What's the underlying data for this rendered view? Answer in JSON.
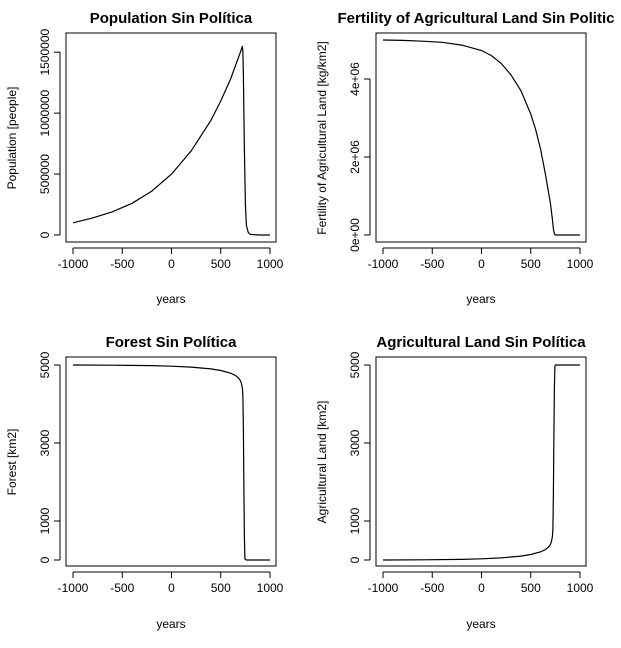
{
  "chart_data": [
    {
      "type": "line",
      "title": "Population Sin Política",
      "xlabel": "years",
      "ylabel": "Population [people]",
      "xlim": [
        -1000,
        1000
      ],
      "ylim": [
        0,
        1600000
      ],
      "x_ticks": [
        -1000,
        -500,
        0,
        500,
        1000
      ],
      "y_ticks": [
        0,
        500000,
        1000000,
        1500000
      ],
      "x_tick_labels": [
        "-1000",
        "-500",
        "0",
        "500",
        "1000"
      ],
      "y_tick_labels": [
        "0",
        "500000",
        "1000000",
        "1500000"
      ],
      "series": [
        {
          "x": [
            -1000,
            -800,
            -600,
            -400,
            -200,
            0,
            200,
            400,
            500,
            600,
            650,
            700,
            720,
            725,
            730,
            740,
            750,
            760,
            780,
            800,
            900,
            1000
          ],
          "y": [
            100000,
            140000,
            190000,
            260000,
            360000,
            500000,
            690000,
            940000,
            1100000,
            1280000,
            1390000,
            1500000,
            1550000,
            1500000,
            1300000,
            700000,
            250000,
            80000,
            20000,
            5000,
            0,
            0
          ]
        }
      ]
    },
    {
      "type": "line",
      "title": "Fertility of Agricultural Land Sin Politic",
      "xlabel": "years",
      "ylabel": "Fertility of Agricultural Land [kg/km2]",
      "xlim": [
        -1000,
        1000
      ],
      "ylim": [
        0,
        5000000
      ],
      "x_ticks": [
        -1000,
        -500,
        0,
        500,
        1000
      ],
      "y_ticks": [
        0,
        2000000,
        4000000
      ],
      "x_tick_labels": [
        "-1000",
        "-500",
        "0",
        "500",
        "1000"
      ],
      "y_tick_labels": [
        "0e+00",
        "2e+06",
        "4e+06"
      ],
      "series": [
        {
          "x": [
            -1000,
            -800,
            -600,
            -400,
            -200,
            0,
            100,
            200,
            300,
            400,
            500,
            550,
            600,
            650,
            700,
            720,
            730,
            740,
            750,
            760,
            800,
            900,
            1000
          ],
          "y": [
            5000000,
            4990000,
            4970000,
            4940000,
            4870000,
            4730000,
            4600000,
            4400000,
            4100000,
            3700000,
            3100000,
            2700000,
            2200000,
            1550000,
            800000,
            400000,
            150000,
            20000,
            0,
            0,
            0,
            0,
            0
          ]
        }
      ]
    },
    {
      "type": "line",
      "title": "Forest Sin Política",
      "xlabel": "years",
      "ylabel": "Forest [km2]",
      "xlim": [
        -1000,
        1000
      ],
      "ylim": [
        0,
        5000
      ],
      "x_ticks": [
        -1000,
        -500,
        0,
        500,
        1000
      ],
      "y_ticks": [
        0,
        1000,
        3000,
        5000
      ],
      "x_tick_labels": [
        "-1000",
        "-500",
        "0",
        "500",
        "1000"
      ],
      "y_tick_labels": [
        "0",
        "1000",
        "3000",
        "5000"
      ],
      "series": [
        {
          "x": [
            -1000,
            -600,
            -200,
            0,
            200,
            400,
            500,
            600,
            650,
            680,
            700,
            710,
            720,
            725,
            730,
            735,
            740,
            745,
            760,
            800,
            1000
          ],
          "y": [
            5000,
            4995,
            4985,
            4970,
            4945,
            4900,
            4860,
            4790,
            4730,
            4670,
            4600,
            4530,
            4400,
            4200,
            3300,
            1800,
            600,
            30,
            0,
            0,
            0
          ]
        }
      ]
    },
    {
      "type": "line",
      "title": "Agricultural Land Sin Política",
      "xlabel": "years",
      "ylabel": "Agricultural Land [km2]",
      "xlim": [
        -1000,
        1000
      ],
      "ylim": [
        0,
        5000
      ],
      "x_ticks": [
        -1000,
        -500,
        0,
        500,
        1000
      ],
      "y_ticks": [
        0,
        1000,
        3000,
        5000
      ],
      "x_tick_labels": [
        "-1000",
        "-500",
        "0",
        "500",
        "1000"
      ],
      "y_tick_labels": [
        "0",
        "1000",
        "3000",
        "5000"
      ],
      "series": [
        {
          "x": [
            -1000,
            -600,
            -200,
            0,
            200,
            400,
            500,
            600,
            650,
            680,
            700,
            710,
            720,
            725,
            730,
            735,
            740,
            745,
            750,
            760,
            800,
            1000
          ],
          "y": [
            0,
            5,
            15,
            30,
            55,
            100,
            140,
            210,
            270,
            330,
            400,
            470,
            600,
            800,
            1700,
            3200,
            4400,
            4970,
            5000,
            5000,
            5000,
            5000
          ]
        }
      ]
    }
  ]
}
